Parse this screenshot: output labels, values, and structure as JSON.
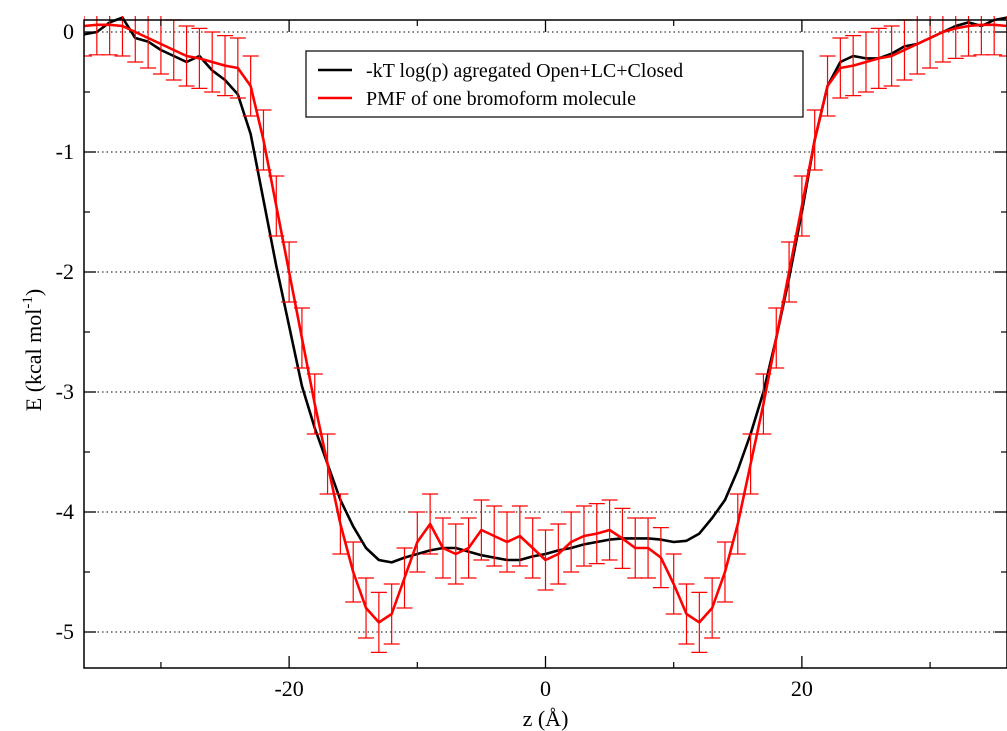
{
  "chart_data": {
    "type": "line",
    "xlabel": "z (Å)",
    "ylabel": "E (kcal mol",
    "ylabel_superscript": "-1",
    "ylabel_suffix": ")",
    "xlim": [
      -36,
      36
    ],
    "ylim": [
      -5.3,
      0.1
    ],
    "x_ticks": [
      -20,
      0,
      20
    ],
    "x_tick_labels": [
      "-20",
      "0",
      "20"
    ],
    "y_ticks": [
      0,
      -1,
      -2,
      -3,
      -4,
      -5
    ],
    "y_tick_labels": [
      "0",
      "-1",
      "-2",
      "-3",
      "-4",
      "-5"
    ],
    "grid": {
      "horizontal_dotted": true,
      "vertical": false
    },
    "legend_position": "top-center",
    "series": [
      {
        "name": "-kT log(p)  agregated Open+LC+Closed",
        "color": "#000000",
        "error_bars": false,
        "x": [
          -36,
          -35,
          -34,
          -33.5,
          -33,
          -32,
          -31,
          -30,
          -29,
          -28,
          -27,
          -26,
          -25,
          -24,
          -23,
          -22,
          -21,
          -20,
          -19,
          -18,
          -17,
          -16,
          -15,
          -14,
          -13,
          -12,
          -11,
          -10,
          -9,
          -8,
          -7,
          -6,
          -5,
          -4,
          -3,
          -2,
          -1,
          0,
          1,
          2,
          3,
          4,
          5,
          6,
          7,
          8,
          9,
          10,
          11,
          12,
          13,
          14,
          15,
          16,
          17,
          18,
          19,
          20,
          21,
          22,
          23,
          24,
          25,
          26,
          27,
          28,
          29,
          30,
          31,
          32,
          33,
          34,
          35,
          36
        ],
        "y": [
          -0.02,
          0.0,
          0.08,
          0.1,
          0.12,
          -0.05,
          -0.08,
          -0.15,
          -0.2,
          -0.25,
          -0.2,
          -0.32,
          -0.4,
          -0.52,
          -0.85,
          -1.4,
          -1.95,
          -2.45,
          -2.95,
          -3.3,
          -3.6,
          -3.9,
          -4.12,
          -4.3,
          -4.4,
          -4.42,
          -4.38,
          -4.35,
          -4.32,
          -4.3,
          -4.3,
          -4.33,
          -4.36,
          -4.38,
          -4.4,
          -4.4,
          -4.37,
          -4.35,
          -4.32,
          -4.3,
          -4.27,
          -4.25,
          -4.23,
          -4.22,
          -4.22,
          -4.22,
          -4.23,
          -4.25,
          -4.24,
          -4.18,
          -4.05,
          -3.9,
          -3.65,
          -3.35,
          -3.0,
          -2.55,
          -2.05,
          -1.5,
          -0.9,
          -0.45,
          -0.25,
          -0.2,
          -0.22,
          -0.22,
          -0.18,
          -0.12,
          -0.1,
          -0.05,
          0.0,
          0.05,
          0.08,
          0.05,
          0.1,
          0.12
        ]
      },
      {
        "name": "PMF of one bromoform molecule",
        "color": "#ff0000",
        "error_bars": true,
        "x": [
          -36,
          -35,
          -34,
          -33,
          -32,
          -31,
          -30,
          -29,
          -28,
          -27,
          -26,
          -25,
          -24,
          -23,
          -22,
          -21,
          -20,
          -19,
          -18,
          -17,
          -16,
          -15,
          -14,
          -13,
          -12,
          -11,
          -10,
          -9,
          -8,
          -7,
          -6,
          -5,
          -4,
          -3,
          -2,
          -1,
          0,
          1,
          2,
          3,
          4,
          5,
          6,
          7,
          8,
          9,
          10,
          11,
          12,
          13,
          14,
          15,
          16,
          17,
          18,
          19,
          20,
          21,
          22,
          23,
          24,
          25,
          26,
          27,
          28,
          29,
          30,
          31,
          32,
          33,
          34,
          35,
          36
        ],
        "y": [
          0.05,
          0.06,
          0.06,
          0.05,
          0.0,
          -0.05,
          -0.1,
          -0.15,
          -0.2,
          -0.22,
          -0.25,
          -0.28,
          -0.3,
          -0.45,
          -0.9,
          -1.45,
          -2.0,
          -2.55,
          -3.1,
          -3.6,
          -4.1,
          -4.5,
          -4.8,
          -4.92,
          -4.85,
          -4.55,
          -4.25,
          -4.1,
          -4.3,
          -4.35,
          -4.3,
          -4.15,
          -4.2,
          -4.25,
          -4.2,
          -4.3,
          -4.4,
          -4.35,
          -4.25,
          -4.2,
          -4.18,
          -4.15,
          -4.22,
          -4.3,
          -4.3,
          -4.38,
          -4.6,
          -4.85,
          -4.92,
          -4.8,
          -4.5,
          -4.1,
          -3.6,
          -3.1,
          -2.55,
          -2.0,
          -1.45,
          -0.9,
          -0.45,
          -0.3,
          -0.28,
          -0.25,
          -0.22,
          -0.2,
          -0.15,
          -0.1,
          -0.05,
          0.0,
          0.03,
          0.05,
          0.06,
          0.06,
          0.05
        ],
        "err": 0.25
      }
    ]
  }
}
